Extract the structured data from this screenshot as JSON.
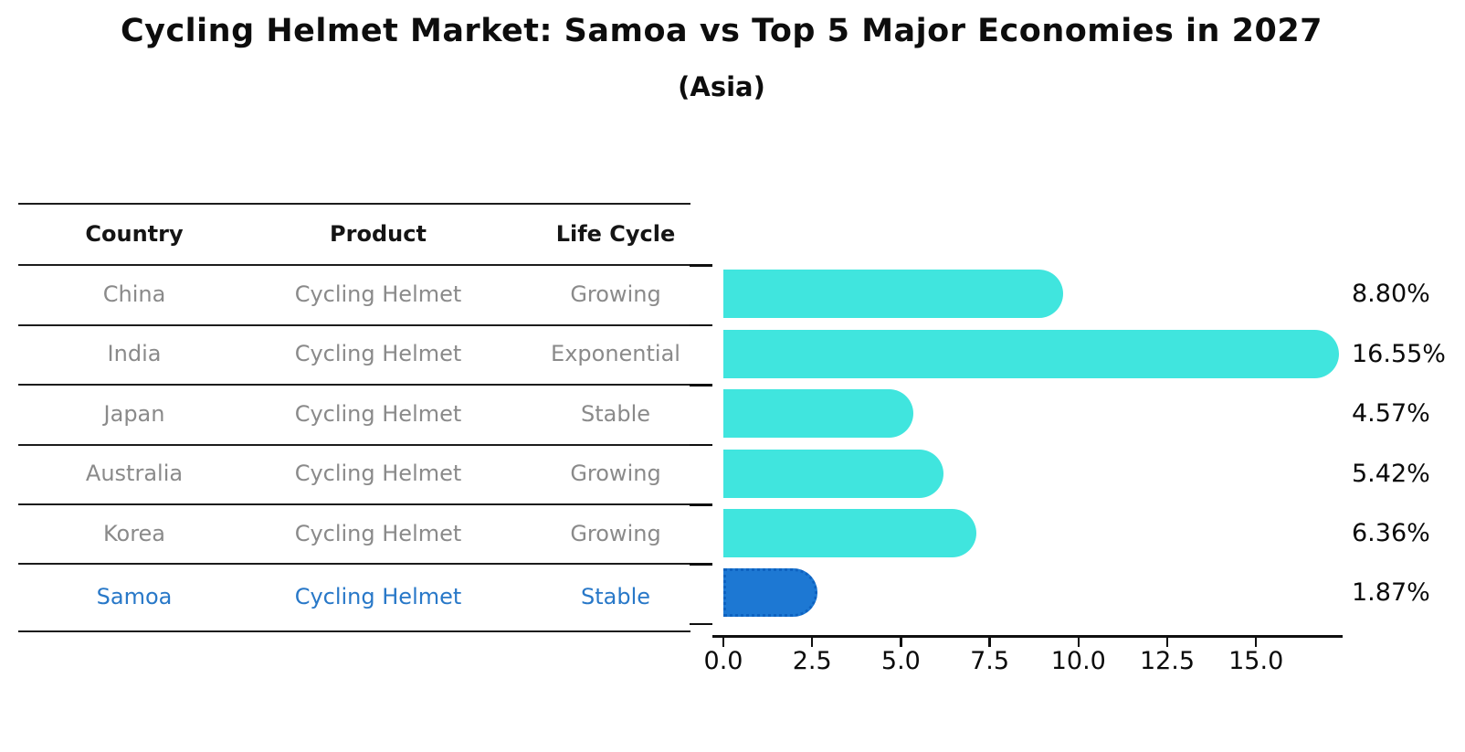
{
  "title": "Cycling Helmet Market: Samoa vs Top 5 Major Economies in 2027",
  "subtitle": "(Asia)",
  "table": {
    "headers": [
      "Country",
      "Product",
      "Life Cycle"
    ],
    "rows": [
      {
        "country": "China",
        "product": "Cycling Helmet",
        "life_cycle": "Growing",
        "highlight": false
      },
      {
        "country": "India",
        "product": "Cycling Helmet",
        "life_cycle": "Exponential",
        "highlight": false
      },
      {
        "country": "Japan",
        "product": "Cycling Helmet",
        "life_cycle": "Stable",
        "highlight": false
      },
      {
        "country": "Australia",
        "product": "Cycling Helmet",
        "life_cycle": "Growing",
        "highlight": false
      },
      {
        "country": "Korea",
        "product": "Cycling Helmet",
        "life_cycle": "Growing",
        "highlight": false
      },
      {
        "country": "Samoa",
        "product": "Cycling Helmet",
        "life_cycle": "Stable",
        "highlight": true
      }
    ]
  },
  "chart_data": {
    "type": "bar",
    "orientation": "horizontal",
    "title": "Cycling Helmet Market: Samoa vs Top 5 Major Economies in 2027",
    "subtitle": "(Asia)",
    "categories": [
      "China",
      "India",
      "Japan",
      "Australia",
      "Korea",
      "Samoa"
    ],
    "values": [
      8.8,
      16.55,
      4.57,
      5.42,
      6.36,
      1.87
    ],
    "value_labels": [
      "8.80%",
      "16.55%",
      "4.57%",
      "5.42%",
      "6.36%",
      "1.87%"
    ],
    "unit": "percent",
    "x_ticks": [
      "0.0",
      "2.5",
      "5.0",
      "7.5",
      "10.0",
      "12.5",
      "15.0"
    ],
    "x_tick_values": [
      0,
      2.5,
      5,
      7.5,
      10,
      12.5,
      15
    ],
    "xlim": [
      0,
      17.4
    ],
    "grid": false,
    "legend": null,
    "highlight_index": 5,
    "bar_color": "#40e5de",
    "highlight_color": "#1d78d3",
    "highlight_border_color": "#0e62c0",
    "highlight_text_color": "#2878c8",
    "value_label_color": "#0a0a0a",
    "table_text_color": "#8a8a8a",
    "table_header_color": "#151515"
  }
}
